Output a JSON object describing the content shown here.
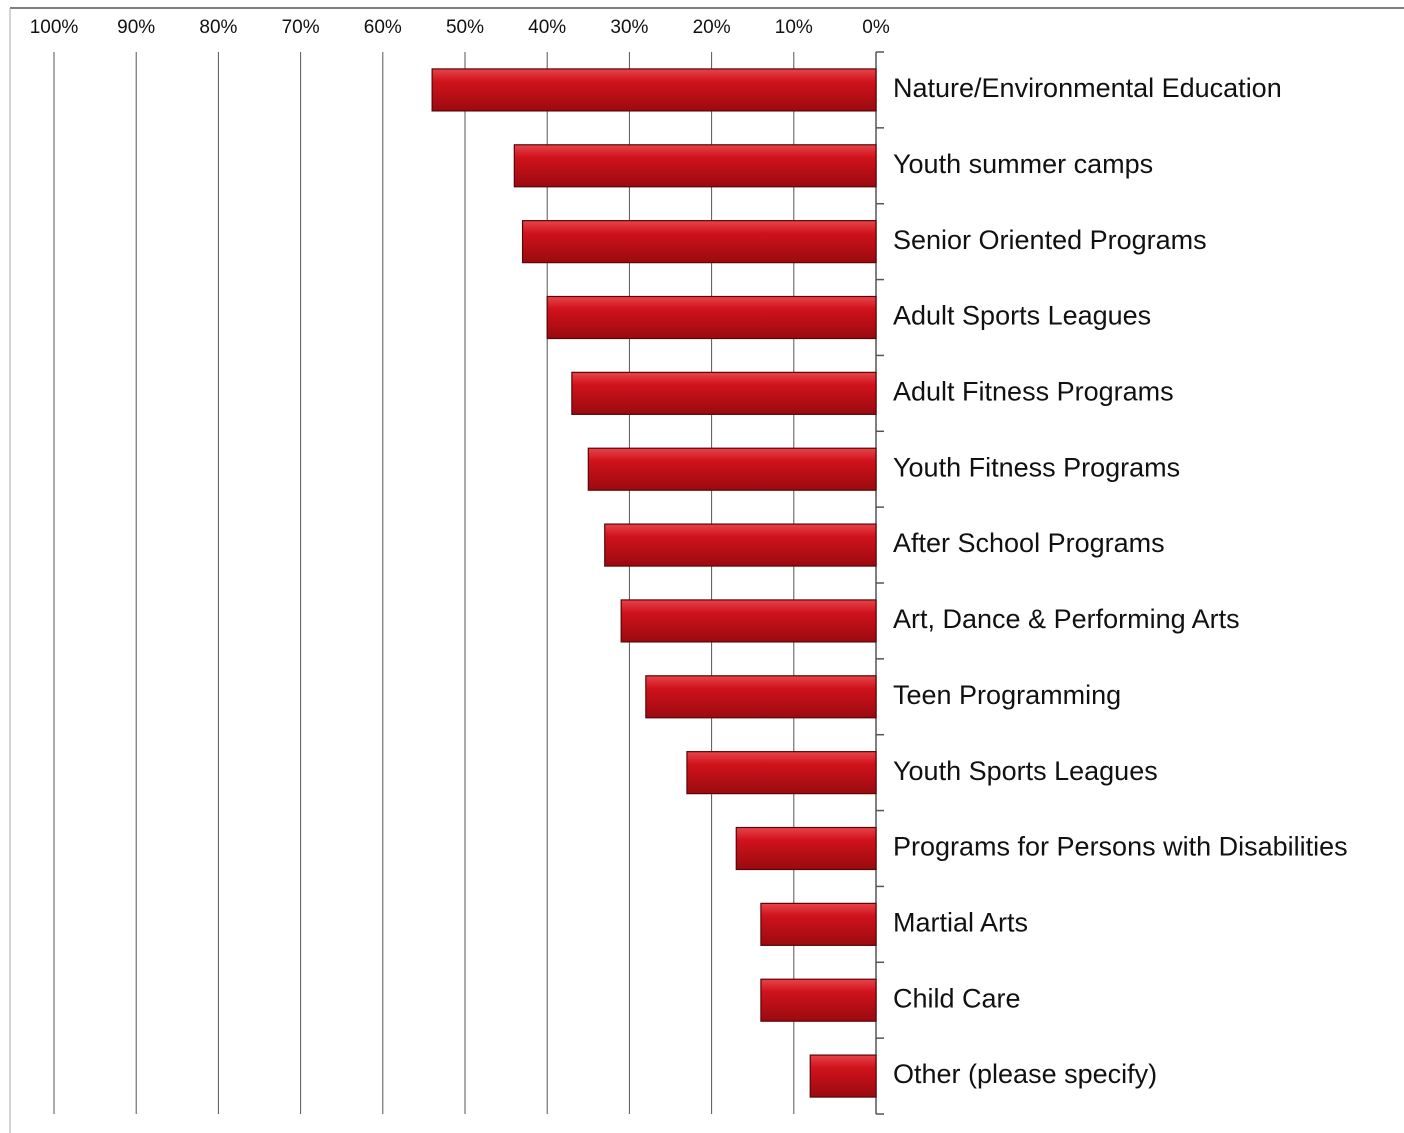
{
  "chart_data": {
    "type": "barh",
    "categories": [
      "Nature/Environmental Education",
      "Youth summer camps",
      "Senior Oriented Programs",
      "Adult Sports Leagues",
      "Adult Fitness Programs",
      "Youth Fitness Programs",
      "After School Programs",
      "Art, Dance & Performing Arts",
      "Teen Programming",
      "Youth Sports Leagues",
      "Programs for Persons with Disabilities",
      "Martial Arts",
      "Child Care",
      "Other (please specify)"
    ],
    "values": [
      54,
      44,
      43,
      40,
      37,
      35,
      33,
      31,
      28,
      23,
      17,
      14,
      14,
      8
    ],
    "color": "#c8101a",
    "xlim": [
      100,
      0
    ],
    "xticks": [
      {
        "value": 100,
        "label": "100%"
      },
      {
        "value": 90,
        "label": "90%"
      },
      {
        "value": 80,
        "label": "80%"
      },
      {
        "value": 70,
        "label": "70%"
      },
      {
        "value": 60,
        "label": "60%"
      },
      {
        "value": 50,
        "label": "50%"
      },
      {
        "value": 40,
        "label": "40%"
      },
      {
        "value": 30,
        "label": "30%"
      },
      {
        "value": 20,
        "label": "20%"
      },
      {
        "value": 10,
        "label": "10%"
      },
      {
        "value": 0,
        "label": "0%"
      }
    ],
    "grid": true
  }
}
